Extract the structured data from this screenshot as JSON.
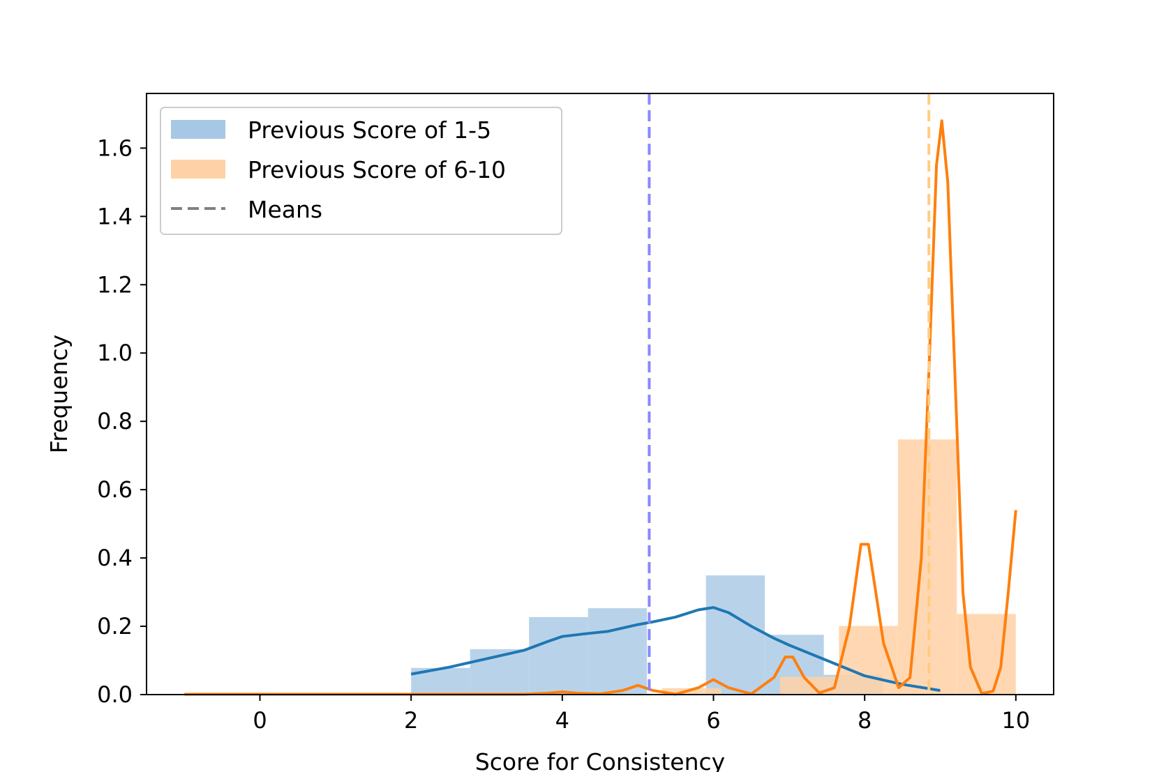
{
  "chart_data": {
    "type": "bar",
    "title": "",
    "xlabel": "Score for Consistency",
    "ylabel": "Frequency",
    "xlim": [
      -1.5,
      10.5
    ],
    "ylim": [
      0,
      1.76
    ],
    "x_ticks": [
      0,
      2,
      4,
      6,
      8,
      10
    ],
    "y_ticks": [
      0.0,
      0.2,
      0.4,
      0.6,
      0.8,
      1.0,
      1.2,
      1.4,
      1.6
    ],
    "x_tick_labels": [
      "0",
      "2",
      "4",
      "6",
      "8",
      "10"
    ],
    "y_tick_labels": [
      "0.0",
      "0.2",
      "0.4",
      "0.6",
      "0.8",
      "1.0",
      "1.2",
      "1.4",
      "1.6"
    ],
    "grid": false,
    "legend_position": "upper-left",
    "legend": [
      {
        "label": "Previous Score of 1-5",
        "kind": "patch",
        "color": "#a6c8e4"
      },
      {
        "label": "Previous Score of 6-10",
        "kind": "patch",
        "color": "#ffd1a6"
      },
      {
        "label": "Means",
        "kind": "dashed-line",
        "color": "#808080"
      }
    ],
    "histograms": [
      {
        "name": "Previous Score of 1-5",
        "color": "#a6c8e4",
        "bins": [
          {
            "x0": 2.0,
            "x1": 2.78,
            "value": 0.078
          },
          {
            "x0": 2.78,
            "x1": 3.56,
            "value": 0.133
          },
          {
            "x0": 3.56,
            "x1": 4.34,
            "value": 0.227
          },
          {
            "x0": 4.34,
            "x1": 5.12,
            "value": 0.253
          },
          {
            "x0": 5.12,
            "x1": 5.9,
            "value": 0.0
          },
          {
            "x0": 5.9,
            "x1": 6.68,
            "value": 0.349
          },
          {
            "x0": 6.68,
            "x1": 7.46,
            "value": 0.175
          },
          {
            "x0": 7.46,
            "x1": 8.24,
            "value": 0.058
          },
          {
            "x0": 8.24,
            "x1": 9.02,
            "value": 0.0
          }
        ]
      },
      {
        "name": "Previous Score of 6-10",
        "color": "#ffd1a6",
        "bins": [
          {
            "x0": 5.32,
            "x1": 6.1,
            "value": 0.019
          },
          {
            "x0": 6.1,
            "x1": 6.88,
            "value": 0.0
          },
          {
            "x0": 6.88,
            "x1": 7.66,
            "value": 0.052
          },
          {
            "x0": 7.66,
            "x1": 8.44,
            "value": 0.201
          },
          {
            "x0": 8.44,
            "x1": 9.22,
            "value": 0.747
          },
          {
            "x0": 9.22,
            "x1": 10.0,
            "value": 0.236
          }
        ]
      }
    ],
    "kde_series": [
      {
        "color": "#1f77b4",
        "points": [
          [
            2.0,
            0.06
          ],
          [
            2.5,
            0.08
          ],
          [
            3.0,
            0.105
          ],
          [
            3.5,
            0.13
          ],
          [
            3.8,
            0.155
          ],
          [
            4.0,
            0.17
          ],
          [
            4.3,
            0.178
          ],
          [
            4.6,
            0.185
          ],
          [
            5.0,
            0.205
          ],
          [
            5.2,
            0.213
          ],
          [
            5.5,
            0.227
          ],
          [
            5.8,
            0.248
          ],
          [
            6.0,
            0.255
          ],
          [
            6.2,
            0.24
          ],
          [
            6.5,
            0.2
          ],
          [
            6.8,
            0.165
          ],
          [
            7.0,
            0.145
          ],
          [
            7.5,
            0.1
          ],
          [
            8.0,
            0.055
          ],
          [
            8.5,
            0.03
          ],
          [
            9.0,
            0.012
          ]
        ]
      },
      {
        "color": "#ff7f0e",
        "points": [
          [
            -1.0,
            0.001
          ],
          [
            3.5,
            0.001
          ],
          [
            3.8,
            0.004
          ],
          [
            4.0,
            0.008
          ],
          [
            4.2,
            0.004
          ],
          [
            4.5,
            0.002
          ],
          [
            4.8,
            0.012
          ],
          [
            5.0,
            0.027
          ],
          [
            5.2,
            0.012
          ],
          [
            5.5,
            0.001
          ],
          [
            5.8,
            0.02
          ],
          [
            6.0,
            0.044
          ],
          [
            6.2,
            0.02
          ],
          [
            6.5,
            0.002
          ],
          [
            6.8,
            0.05
          ],
          [
            6.95,
            0.11
          ],
          [
            7.05,
            0.11
          ],
          [
            7.2,
            0.05
          ],
          [
            7.4,
            0.005
          ],
          [
            7.6,
            0.02
          ],
          [
            7.8,
            0.2
          ],
          [
            7.95,
            0.44
          ],
          [
            8.05,
            0.44
          ],
          [
            8.25,
            0.15
          ],
          [
            8.45,
            0.02
          ],
          [
            8.6,
            0.05
          ],
          [
            8.75,
            0.4
          ],
          [
            8.85,
            0.95
          ],
          [
            8.95,
            1.55
          ],
          [
            9.02,
            1.68
          ],
          [
            9.1,
            1.5
          ],
          [
            9.2,
            0.9
          ],
          [
            9.3,
            0.3
          ],
          [
            9.4,
            0.08
          ],
          [
            9.55,
            0.003
          ],
          [
            9.7,
            0.01
          ],
          [
            9.8,
            0.08
          ],
          [
            9.9,
            0.3
          ],
          [
            10.0,
            0.54
          ]
        ]
      }
    ],
    "mean_lines": [
      {
        "x": 5.15,
        "color": "#8888ff"
      },
      {
        "x": 8.85,
        "color": "#ffcc80"
      }
    ]
  }
}
